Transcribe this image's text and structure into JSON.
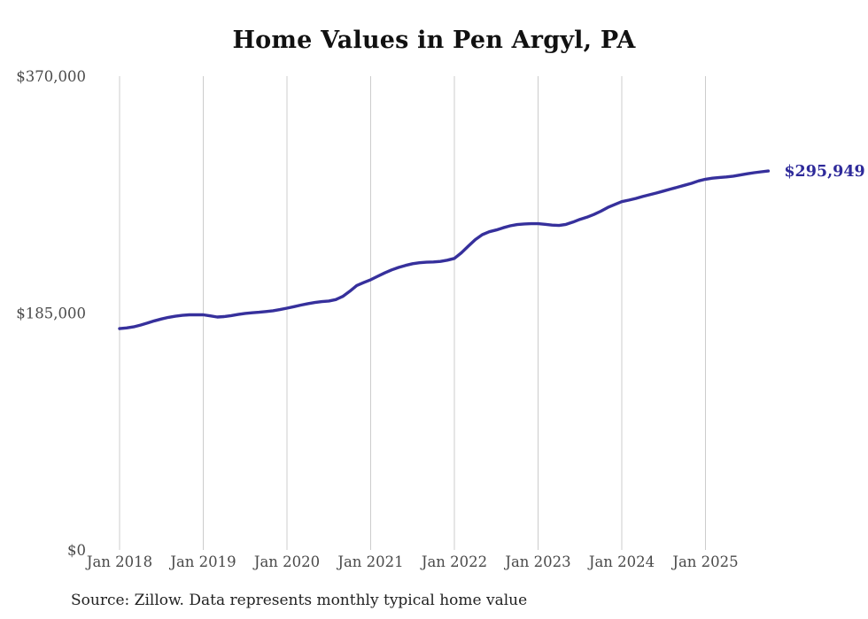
{
  "title": "Home Values in Pen Argyl, PA",
  "source_note": "Source: Zillow. Data represents monthly typical home value",
  "colors": {
    "line": "#36309c",
    "end_label": "#2e2a9a",
    "gridline": "#cccccc",
    "tick_text": "#4a4a4a",
    "title_text": "#111111",
    "source_text": "#222222",
    "background": "#ffffff"
  },
  "chart_data": {
    "type": "line",
    "title": "Home Values in Pen Argyl, PA",
    "xlabel": "",
    "ylabel": "",
    "ylim": [
      0,
      370000
    ],
    "grid": "vertical-only",
    "legend": "none",
    "end_label": "$295,949",
    "final_value": 295949,
    "y_ticks": [
      {
        "label": "$0",
        "value": 0
      },
      {
        "label": "$185,000",
        "value": 185000
      },
      {
        "label": "$370,000",
        "value": 370000
      }
    ],
    "x_ticks": [
      "Jan 2018",
      "Jan 2019",
      "Jan 2020",
      "Jan 2021",
      "Jan 2022",
      "Jan 2023",
      "Jan 2024",
      "Jan 2025"
    ],
    "x": [
      "2018-01",
      "2018-02",
      "2018-03",
      "2018-04",
      "2018-05",
      "2018-06",
      "2018-07",
      "2018-08",
      "2018-09",
      "2018-10",
      "2018-11",
      "2018-12",
      "2019-01",
      "2019-02",
      "2019-03",
      "2019-04",
      "2019-05",
      "2019-06",
      "2019-07",
      "2019-08",
      "2019-09",
      "2019-10",
      "2019-11",
      "2019-12",
      "2020-01",
      "2020-02",
      "2020-03",
      "2020-04",
      "2020-05",
      "2020-06",
      "2020-07",
      "2020-08",
      "2020-09",
      "2020-10",
      "2020-11",
      "2020-12",
      "2021-01",
      "2021-02",
      "2021-03",
      "2021-04",
      "2021-05",
      "2021-06",
      "2021-07",
      "2021-08",
      "2021-09",
      "2021-10",
      "2021-11",
      "2021-12",
      "2022-01",
      "2022-02",
      "2022-03",
      "2022-04",
      "2022-05",
      "2022-06",
      "2022-07",
      "2022-08",
      "2022-09",
      "2022-10",
      "2022-11",
      "2022-12",
      "2023-01",
      "2023-02",
      "2023-03",
      "2023-04",
      "2023-05",
      "2023-06",
      "2023-07",
      "2023-08",
      "2023-09",
      "2023-10",
      "2023-11",
      "2023-12",
      "2024-01",
      "2024-02",
      "2024-03",
      "2024-04",
      "2024-05",
      "2024-06",
      "2024-07",
      "2024-08",
      "2024-09",
      "2024-10",
      "2024-11",
      "2024-12",
      "2025-01",
      "2025-02",
      "2025-03",
      "2025-04",
      "2025-05",
      "2025-06",
      "2025-07",
      "2025-08",
      "2025-09",
      "2025-10"
    ],
    "values": [
      172800,
      173400,
      174200,
      175600,
      177200,
      178900,
      180400,
      181600,
      182500,
      183200,
      183600,
      183700,
      183600,
      182800,
      181900,
      182200,
      183000,
      183900,
      184700,
      185200,
      185600,
      186200,
      186800,
      187700,
      188800,
      190000,
      191200,
      192300,
      193200,
      193900,
      194400,
      195500,
      198000,
      202000,
      206500,
      208800,
      211000,
      213700,
      216300,
      218700,
      220600,
      222200,
      223500,
      224300,
      224700,
      224900,
      225300,
      226300,
      227700,
      232000,
      237300,
      242300,
      246200,
      248500,
      249900,
      251600,
      253100,
      254100,
      254600,
      254800,
      254800,
      254300,
      253700,
      253400,
      254200,
      256000,
      258200,
      259800,
      262000,
      264500,
      267500,
      269800,
      272000,
      273200,
      274500,
      276000,
      277400,
      278800,
      280300,
      281800,
      283300,
      284800,
      286300,
      288200,
      289500,
      290300,
      290900,
      291300,
      291900,
      292800,
      293800,
      294600,
      295300,
      295949
    ]
  }
}
